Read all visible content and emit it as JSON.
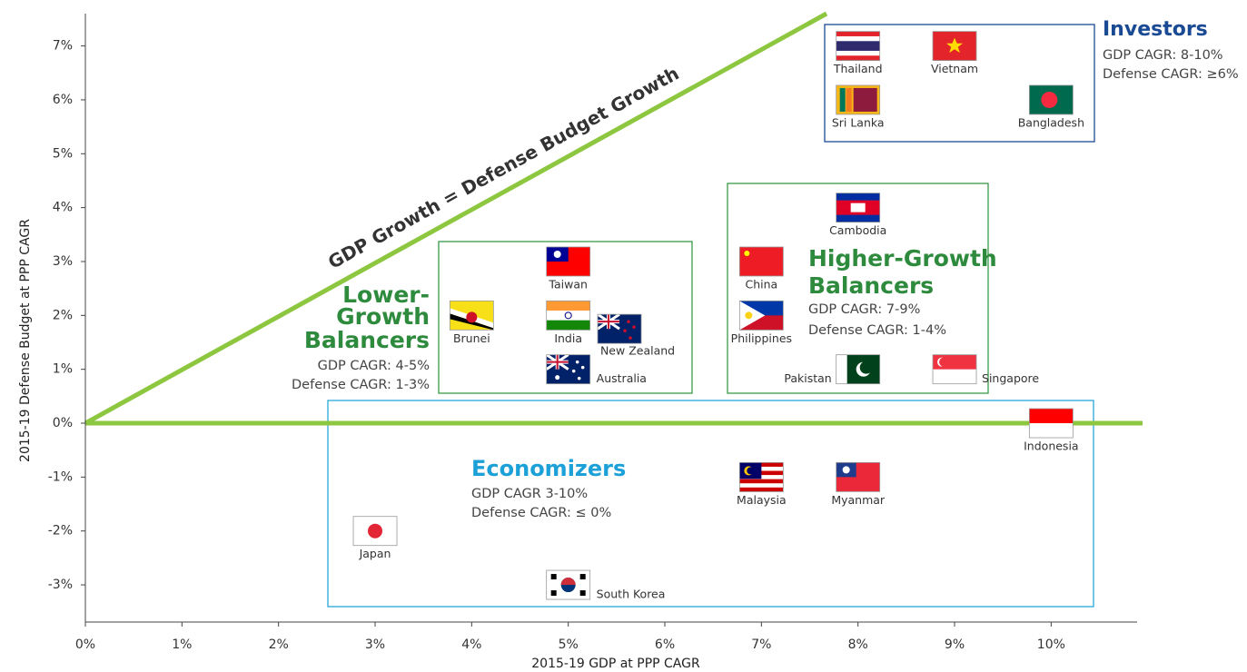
{
  "chart_data": {
    "type": "scatter",
    "xlabel": "2015-19 GDP at PPP CAGR",
    "ylabel": "2015-19 Defense Budget at PPP CAGR",
    "xlim": [
      0,
      10.89
    ],
    "ylim": [
      -3.69,
      7.6
    ],
    "xticks": [
      {
        "value": 0,
        "label": "0%"
      },
      {
        "value": 1,
        "label": "1%"
      },
      {
        "value": 2,
        "label": "2%"
      },
      {
        "value": 3,
        "label": "3%"
      },
      {
        "value": 4,
        "label": "4%"
      },
      {
        "value": 5,
        "label": "5%"
      },
      {
        "value": 6,
        "label": "6%"
      },
      {
        "value": 7,
        "label": "7%"
      },
      {
        "value": 8,
        "label": "8%"
      },
      {
        "value": 9,
        "label": "9%"
      },
      {
        "value": 10,
        "label": "10%"
      }
    ],
    "yticks": [
      {
        "value": -3,
        "label": "-3%"
      },
      {
        "value": -2,
        "label": "-2%"
      },
      {
        "value": -1,
        "label": "-1%"
      },
      {
        "value": 0,
        "label": "0%"
      },
      {
        "value": 1,
        "label": "1%"
      },
      {
        "value": 2,
        "label": "2%"
      },
      {
        "value": 3,
        "label": "3%"
      },
      {
        "value": 4,
        "label": "4%"
      },
      {
        "value": 5,
        "label": "5%"
      },
      {
        "value": 6,
        "label": "6%"
      },
      {
        "value": 7,
        "label": "7%"
      }
    ],
    "line_label": "GDP Growth = Defense Budget Growth",
    "groups": [
      {
        "title": [
          "Investors"
        ],
        "lines": [
          "GDP CAGR: 8-10%",
          "Defense CAGR: ≥6%"
        ]
      },
      {
        "title": [
          "Higher-Growth",
          "Balancers"
        ],
        "lines": [
          "GDP CAGR: 7-9%",
          "Defense CAGR: 1-4%"
        ]
      },
      {
        "title": [
          "Lower-",
          "Growth",
          "Balancers"
        ],
        "lines": [
          "GDP CAGR: 4-5%",
          "Defense CAGR: 1-3%"
        ]
      },
      {
        "title": [
          "Economizers"
        ],
        "lines": [
          "GDP CAGR 3-10%",
          "Defense CAGR: ≤ 0%"
        ]
      }
    ],
    "points": [
      {
        "label": "Thailand",
        "x": 8,
        "y": 7
      },
      {
        "label": "Vietnam",
        "x": 9,
        "y": 7
      },
      {
        "label": "Sri Lanka",
        "x": 8,
        "y": 6
      },
      {
        "label": "Bangladesh",
        "x": 10,
        "y": 6
      },
      {
        "label": "Cambodia",
        "x": 8,
        "y": 4
      },
      {
        "label": "China",
        "x": 7,
        "y": 3
      },
      {
        "label": "Philippines",
        "x": 7,
        "y": 2
      },
      {
        "label": "Pakistan",
        "x": 8,
        "y": 1
      },
      {
        "label": "Singapore",
        "x": 9,
        "y": 1
      },
      {
        "label": "Taiwan",
        "x": 5,
        "y": 3
      },
      {
        "label": "India",
        "x": 5,
        "y": 2
      },
      {
        "label": "Brunei",
        "x": 4,
        "y": 2
      },
      {
        "label": "New Zealand",
        "x": 5.53,
        "y": 1.75
      },
      {
        "label": "Australia",
        "x": 5,
        "y": 1
      },
      {
        "label": "Indonesia",
        "x": 10,
        "y": 0
      },
      {
        "label": "Malaysia",
        "x": 7,
        "y": -1
      },
      {
        "label": "Myanmar",
        "x": 8,
        "y": -1
      },
      {
        "label": "Japan",
        "x": 3,
        "y": -2
      },
      {
        "label": "South Korea",
        "x": 5,
        "y": -3
      }
    ]
  }
}
